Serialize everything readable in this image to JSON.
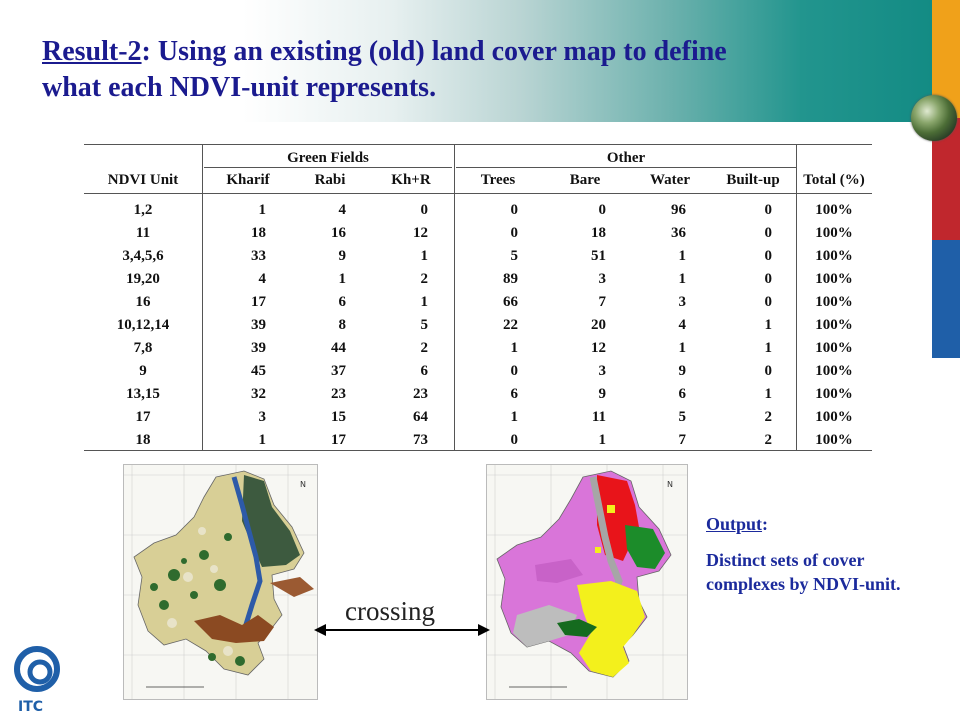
{
  "title": {
    "prefix": "Result-2",
    "rest_line1": ": Using an existing (old) land cover map to define",
    "line2": "what each NDVI-unit represents."
  },
  "table": {
    "group_headers": [
      "Green Fields",
      "Other"
    ],
    "columns": [
      "NDVI Unit",
      "Kharif",
      "Rabi",
      "Kh+R",
      "Trees",
      "Bare",
      "Water",
      "Built-up",
      "Total (%)"
    ],
    "rows": [
      [
        "1,2",
        "1",
        "4",
        "0",
        "0",
        "0",
        "96",
        "0",
        "100%"
      ],
      [
        "11",
        "18",
        "16",
        "12",
        "0",
        "18",
        "36",
        "0",
        "100%"
      ],
      [
        "3,4,5,6",
        "33",
        "9",
        "1",
        "5",
        "51",
        "1",
        "0",
        "100%"
      ],
      [
        "19,20",
        "4",
        "1",
        "2",
        "89",
        "3",
        "1",
        "0",
        "100%"
      ],
      [
        "16",
        "17",
        "6",
        "1",
        "66",
        "7",
        "3",
        "0",
        "100%"
      ],
      [
        "10,12,14",
        "39",
        "8",
        "5",
        "22",
        "20",
        "4",
        "1",
        "100%"
      ],
      [
        "7,8",
        "39",
        "44",
        "2",
        "1",
        "12",
        "1",
        "1",
        "100%"
      ],
      [
        "9",
        "45",
        "37",
        "6",
        "0",
        "3",
        "9",
        "0",
        "100%"
      ],
      [
        "13,15",
        "32",
        "23",
        "23",
        "6",
        "9",
        "6",
        "1",
        "100%"
      ],
      [
        "17",
        "3",
        "15",
        "64",
        "1",
        "11",
        "5",
        "2",
        "100%"
      ],
      [
        "18",
        "1",
        "17",
        "73",
        "0",
        "1",
        "7",
        "2",
        "100%"
      ]
    ]
  },
  "crossing_label": "crossing",
  "output": {
    "label": "Output",
    "colon": ":",
    "text": "Distinct sets of cover complexes by NDVI-unit."
  },
  "logo_text": "ITC",
  "colors": {
    "title": "#1b1b8f",
    "output": "#1b2a9c",
    "stripe_orange": "#f0a11a",
    "stripe_red": "#c0272d",
    "stripe_blue": "#1f5fa8"
  }
}
